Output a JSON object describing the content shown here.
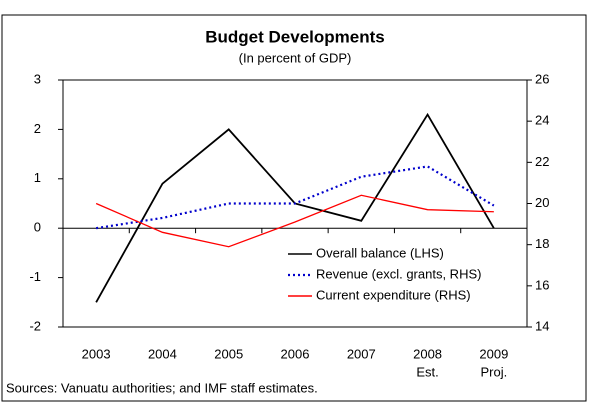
{
  "chart_data": {
    "type": "line",
    "title": "Budget Developments",
    "subtitle": "(In percent of GDP)",
    "categories": [
      "2003",
      "2004",
      "2005",
      "2006",
      "2007",
      "2008",
      "2009"
    ],
    "category_sublabels": [
      null,
      null,
      null,
      null,
      null,
      "Est.",
      "Proj."
    ],
    "series": [
      {
        "name": "Overall balance (LHS)",
        "color": "#000000",
        "style": "solid",
        "values": [
          -1.5,
          0.9,
          2.0,
          0.5,
          0.15,
          2.3,
          0
        ]
      },
      {
        "name": "Revenue (excl. grants, RHS)",
        "color": "#0000cc",
        "style": "dotted",
        "axis": "y2",
        "values": [
          18.8,
          19.3,
          20.0,
          20.0,
          21.3,
          21.8,
          19.9
        ]
      },
      {
        "name": "Current expenditure (RHS)",
        "color": "#ff0000",
        "style": "solid",
        "axis": "y2",
        "values": [
          20.0,
          18.6,
          17.9,
          19.1,
          20.4,
          19.7,
          19.6
        ]
      }
    ],
    "ylim": [
      -2,
      3
    ],
    "yticks": [
      -2,
      -1,
      0,
      1,
      2,
      3
    ],
    "y2lim": [
      14,
      26
    ],
    "y2ticks": [
      14,
      16,
      18,
      20,
      22,
      24,
      26
    ],
    "source": "Sources: Vanuatu authorities; and IMF staff estimates."
  }
}
